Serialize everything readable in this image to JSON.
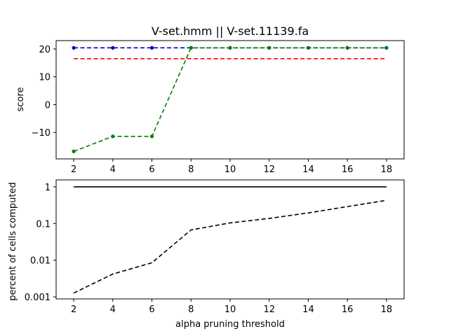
{
  "chart_data": [
    {
      "type": "line",
      "title": "V-set.hmm || V-set.11139.fa",
      "xlabel": "",
      "ylabel": "score",
      "x": [
        2,
        4,
        6,
        8,
        10,
        12,
        14,
        16,
        18
      ],
      "x_ticks": [
        2,
        4,
        6,
        8,
        10,
        12,
        14,
        16,
        18
      ],
      "xlim": [
        1.1,
        18.9
      ],
      "y_ticks": [
        20,
        10,
        0,
        -10
      ],
      "ylim": [
        -19.5,
        23
      ],
      "grid": false,
      "series": [
        {
          "color": "#0000bf",
          "style": "dashed",
          "markers": true,
          "values": [
            20.4,
            20.4,
            20.4,
            20.4,
            20.4,
            20.4,
            20.4,
            20.4,
            20.4
          ]
        },
        {
          "color": "#ff0000",
          "style": "dashed",
          "markers": false,
          "values": [
            16.5,
            16.5,
            16.5,
            16.5,
            16.5,
            16.5,
            16.5,
            16.5,
            16.5
          ]
        },
        {
          "color": "#007f00",
          "style": "dashed",
          "markers": true,
          "values": [
            -16.8,
            -11.4,
            -11.4,
            20.4,
            20.4,
            20.4,
            20.4,
            20.4,
            20.4
          ]
        }
      ]
    },
    {
      "type": "line",
      "title": "",
      "xlabel": "alpha pruning threshold",
      "ylabel": "percent of cells computed",
      "scale_y": "log",
      "x": [
        2,
        4,
        6,
        8,
        10,
        12,
        14,
        16,
        18
      ],
      "x_ticks": [
        2,
        4,
        6,
        8,
        10,
        12,
        14,
        16,
        18
      ],
      "xlim": [
        1.1,
        18.9
      ],
      "y_ticks": [
        1,
        0.1,
        0.01,
        0.001
      ],
      "y_tick_labels": [
        "1",
        "0.1",
        "0.01",
        "0.001"
      ],
      "ylim": [
        0.00088,
        1.55
      ],
      "grid": false,
      "series": [
        {
          "color": "#000000",
          "style": "solid",
          "markers": false,
          "values": [
            1,
            1,
            1,
            1,
            1,
            1,
            1,
            1,
            1
          ]
        },
        {
          "color": "#000000",
          "style": "dashed",
          "markers": false,
          "values": [
            0.00127,
            0.0042,
            0.0085,
            0.067,
            0.104,
            0.138,
            0.195,
            0.29,
            0.43
          ]
        }
      ]
    }
  ]
}
